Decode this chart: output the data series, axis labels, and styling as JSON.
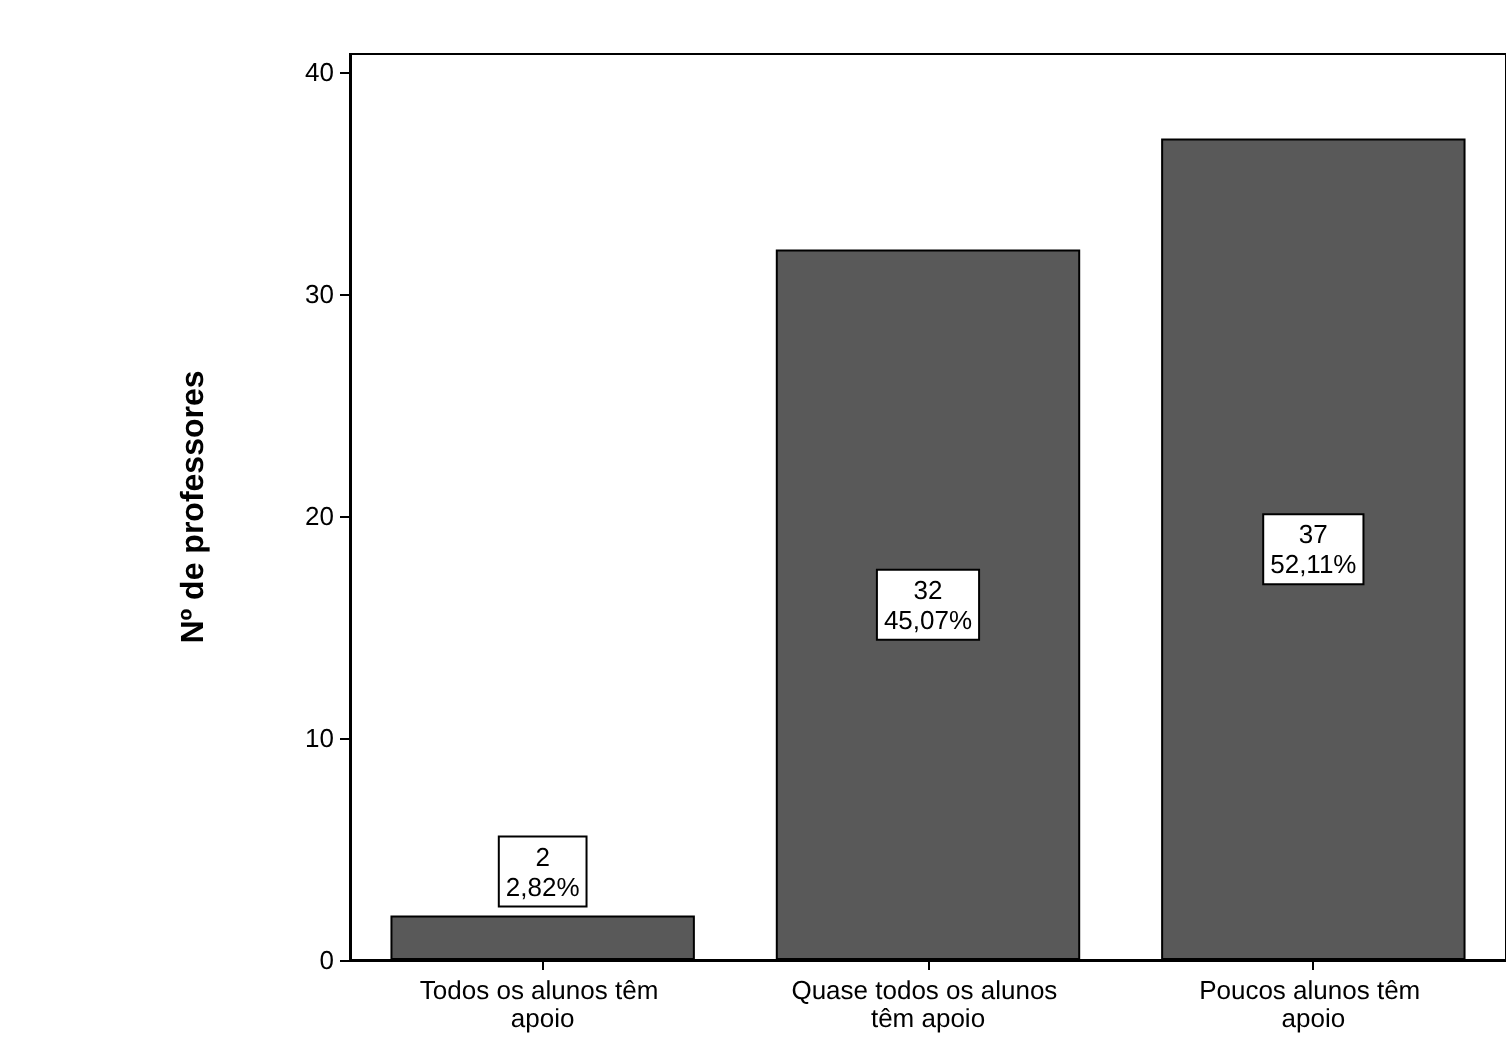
{
  "chart_data": {
    "type": "bar",
    "ylabel": "Nº de professores",
    "categories": [
      "Todos os alunos têm apoio",
      "Quase todos os alunos têm apoio",
      "Poucos alunos têm apoio"
    ],
    "values": [
      2,
      32,
      37
    ],
    "value_labels": [
      "2\n2,82%",
      "32\n45,07%",
      "37\n52,11%"
    ],
    "color": "#595959",
    "ylim": [
      0,
      40.8
    ],
    "yticks": [
      0,
      10,
      20,
      30,
      40
    ],
    "grid": false
  }
}
